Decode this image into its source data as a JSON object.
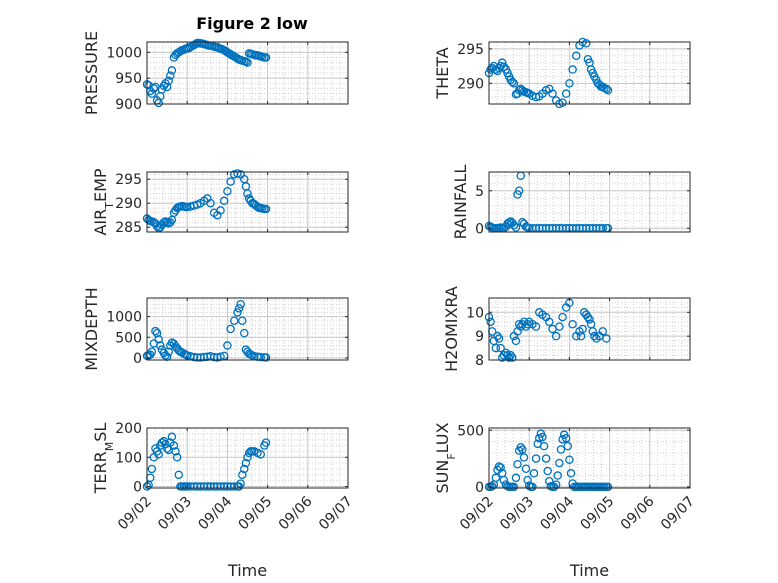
{
  "figure_title": "Figure 2 low",
  "colors": {
    "marker": "#0072BD",
    "axis": "#262626",
    "grid": "#d0d0d0"
  },
  "chart_data": [
    {
      "type": "scatter",
      "ylabel": "PRESSURE",
      "ylabel_parts": [
        {
          "t": "PRESSURE"
        }
      ],
      "xlabel": "",
      "ylim": [
        900,
        1020
      ],
      "yticks": [
        900,
        950,
        1000
      ],
      "xticks": [
        "09/02",
        "09/03",
        "09/04",
        "09/05",
        "09/06",
        "09/07"
      ],
      "show_xtick_labels": false,
      "x": [
        1.0,
        1.04,
        1.08,
        1.12,
        1.17,
        1.21,
        1.25,
        1.29,
        1.33,
        1.37,
        1.42,
        1.46,
        1.5,
        1.54,
        1.58,
        1.62,
        1.67,
        1.71,
        1.75,
        1.79,
        1.83,
        1.87,
        1.92,
        1.96,
        2.0,
        2.04,
        2.08,
        2.12,
        2.17,
        2.21,
        2.25,
        2.29,
        2.33,
        2.37,
        2.42,
        2.46,
        2.5,
        2.54,
        2.58,
        2.62,
        2.67,
        2.71,
        2.75,
        2.79,
        2.83,
        2.87,
        2.92,
        2.96,
        3.0,
        3.04,
        3.08,
        3.12,
        3.17,
        3.21,
        3.25,
        3.29,
        3.33,
        3.37,
        3.42,
        3.46,
        3.5,
        3.54,
        3.58,
        3.62,
        3.67,
        3.71,
        3.75,
        3.79,
        3.83,
        3.87,
        3.92,
        3.96
      ],
      "y": [
        938,
        936,
        925,
        920,
        930,
        933,
        907,
        902,
        915,
        928,
        935,
        940,
        933,
        945,
        955,
        965,
        990,
        995,
        998,
        1000,
        1002,
        1004,
        1005,
        1007,
        1008,
        1008,
        1010,
        1012,
        1014,
        1016,
        1018,
        1018,
        1017,
        1017,
        1016,
        1015,
        1014,
        1013,
        1013,
        1012,
        1011,
        1010,
        1010,
        1008,
        1007,
        1006,
        1004,
        1002,
        1000,
        998,
        996,
        994,
        992,
        990,
        988,
        986,
        985,
        984,
        983,
        982,
        980,
        998,
        997,
        996,
        995,
        994,
        994,
        993,
        992,
        991,
        990,
        990
      ]
    },
    {
      "type": "scatter",
      "ylabel": "THETA",
      "ylabel_parts": [
        {
          "t": "THETA"
        }
      ],
      "xlabel": "",
      "ylim": [
        287,
        296
      ],
      "yticks": [
        290,
        295
      ],
      "xticks": [
        "09/02",
        "09/03",
        "09/04",
        "09/05",
        "09/06",
        "09/07"
      ],
      "show_xtick_labels": false,
      "x": [
        1.0,
        1.04,
        1.08,
        1.12,
        1.17,
        1.21,
        1.25,
        1.29,
        1.33,
        1.37,
        1.42,
        1.46,
        1.5,
        1.54,
        1.58,
        1.62,
        1.67,
        1.71,
        1.75,
        1.79,
        1.83,
        1.87,
        1.92,
        1.96,
        2.0,
        2.08,
        2.17,
        2.25,
        2.33,
        2.42,
        2.5,
        2.58,
        2.67,
        2.75,
        2.83,
        2.92,
        3.0,
        3.08,
        3.17,
        3.25,
        3.33,
        3.42,
        3.46,
        3.5,
        3.54,
        3.58,
        3.62,
        3.67,
        3.71,
        3.75,
        3.79,
        3.83,
        3.87,
        3.92,
        3.96
      ],
      "y": [
        291.5,
        292.0,
        292.2,
        292.5,
        292.0,
        291.8,
        292.2,
        292.5,
        293.0,
        292.4,
        292.0,
        291.5,
        291.0,
        290.5,
        290.2,
        290.0,
        288.4,
        288.5,
        289.0,
        289.2,
        289.0,
        288.8,
        288.7,
        288.6,
        288.5,
        288.2,
        288.0,
        288.1,
        288.5,
        289.0,
        289.2,
        288.5,
        287.5,
        287.0,
        287.2,
        288.5,
        290.0,
        292.0,
        294.0,
        295.5,
        296.0,
        295.8,
        293.5,
        293.0,
        292.0,
        291.5,
        291.0,
        290.5,
        290.0,
        289.8,
        289.5,
        289.5,
        289.3,
        289.2,
        289.0
      ]
    },
    {
      "type": "scatter",
      "ylabel": "AIR_TEMP",
      "ylabel_parts": [
        {
          "t": "AIR"
        },
        {
          "t": "T",
          "sub": true
        },
        {
          "t": "EMP"
        }
      ],
      "xlabel": "",
      "ylim": [
        284,
        296.5
      ],
      "yticks": [
        285,
        290,
        295
      ],
      "xticks": [
        "09/02",
        "09/03",
        "09/04",
        "09/05",
        "09/06",
        "09/07"
      ],
      "show_xtick_labels": false,
      "x": [
        1.0,
        1.04,
        1.08,
        1.12,
        1.17,
        1.21,
        1.25,
        1.29,
        1.33,
        1.37,
        1.42,
        1.46,
        1.5,
        1.54,
        1.58,
        1.62,
        1.67,
        1.71,
        1.75,
        1.79,
        1.83,
        1.87,
        1.92,
        1.96,
        2.0,
        2.08,
        2.17,
        2.25,
        2.33,
        2.42,
        2.5,
        2.58,
        2.67,
        2.75,
        2.83,
        2.92,
        3.0,
        3.08,
        3.17,
        3.25,
        3.33,
        3.42,
        3.46,
        3.5,
        3.54,
        3.58,
        3.62,
        3.67,
        3.71,
        3.75,
        3.79,
        3.83,
        3.87,
        3.92,
        3.96
      ],
      "y": [
        286.8,
        286.5,
        286.3,
        286.2,
        286.0,
        285.8,
        285.2,
        284.8,
        285.0,
        285.5,
        286.0,
        286.2,
        286.0,
        285.8,
        286.0,
        286.5,
        288.0,
        288.5,
        289.0,
        289.2,
        289.3,
        289.4,
        289.3,
        289.2,
        289.2,
        289.3,
        289.5,
        289.7,
        290.0,
        290.5,
        291.0,
        290.0,
        288.0,
        287.5,
        288.5,
        290.5,
        292.5,
        294.5,
        296.0,
        296.2,
        296.0,
        295.0,
        293.5,
        292.0,
        291.0,
        290.5,
        290.0,
        289.8,
        289.5,
        289.2,
        289.0,
        289.0,
        288.9,
        288.8,
        288.8
      ]
    },
    {
      "type": "scatter",
      "ylabel": "RAINFALL",
      "ylabel_parts": [
        {
          "t": "RAINFALL"
        }
      ],
      "xlabel": "",
      "ylim": [
        -0.5,
        7.5
      ],
      "yticks": [
        0,
        5
      ],
      "xticks": [
        "09/02",
        "09/03",
        "09/04",
        "09/05",
        "09/06",
        "09/07"
      ],
      "show_xtick_labels": false,
      "x": [
        1.0,
        1.04,
        1.08,
        1.12,
        1.17,
        1.21,
        1.25,
        1.29,
        1.33,
        1.37,
        1.42,
        1.46,
        1.5,
        1.54,
        1.58,
        1.62,
        1.67,
        1.71,
        1.75,
        1.79,
        1.83,
        1.87,
        1.92,
        1.96,
        2.0,
        2.08,
        2.17,
        2.25,
        2.33,
        2.42,
        2.5,
        2.58,
        2.67,
        2.75,
        2.83,
        2.92,
        3.0,
        3.08,
        3.17,
        3.25,
        3.33,
        3.42,
        3.5,
        3.58,
        3.67,
        3.75,
        3.83,
        3.92,
        3.96
      ],
      "y": [
        0.3,
        0.2,
        0.1,
        0.0,
        0.0,
        0.0,
        0.0,
        0.1,
        0.0,
        0.0,
        0.2,
        0.6,
        0.8,
        0.9,
        0.7,
        0.4,
        0.1,
        4.5,
        5.0,
        7.0,
        0.8,
        0.6,
        0.2,
        0.1,
        0.0,
        0.0,
        0.0,
        0.0,
        0.0,
        0.0,
        0.0,
        0.0,
        0.0,
        0.0,
        0.0,
        0.0,
        0.0,
        0.0,
        0.0,
        0.0,
        0.0,
        0.0,
        0.0,
        0.0,
        0.0,
        0.0,
        0.0,
        0.0,
        0.0
      ]
    },
    {
      "type": "scatter",
      "ylabel": "MIXDEPTH",
      "ylabel_parts": [
        {
          "t": "MIXDEPTH"
        }
      ],
      "xlabel": "",
      "ylim": [
        -50,
        1450
      ],
      "yticks": [
        0,
        500,
        1000
      ],
      "xticks": [
        "09/02",
        "09/03",
        "09/04",
        "09/05",
        "09/06",
        "09/07"
      ],
      "show_xtick_labels": false,
      "x": [
        1.0,
        1.04,
        1.08,
        1.12,
        1.17,
        1.21,
        1.25,
        1.29,
        1.33,
        1.37,
        1.42,
        1.46,
        1.5,
        1.54,
        1.58,
        1.62,
        1.67,
        1.71,
        1.75,
        1.79,
        1.83,
        1.87,
        1.92,
        1.96,
        2.0,
        2.08,
        2.17,
        2.25,
        2.33,
        2.42,
        2.5,
        2.58,
        2.67,
        2.75,
        2.83,
        2.92,
        3.0,
        3.08,
        3.17,
        3.25,
        3.29,
        3.33,
        3.37,
        3.42,
        3.46,
        3.5,
        3.54,
        3.58,
        3.62,
        3.67,
        3.75,
        3.83,
        3.92,
        3.96
      ],
      "y": [
        50,
        60,
        80,
        150,
        350,
        650,
        600,
        450,
        300,
        200,
        120,
        60,
        30,
        150,
        300,
        370,
        340,
        280,
        230,
        180,
        150,
        130,
        100,
        80,
        60,
        40,
        20,
        10,
        10,
        20,
        30,
        40,
        20,
        10,
        30,
        50,
        300,
        700,
        900,
        1100,
        1200,
        1300,
        900,
        600,
        200,
        150,
        100,
        80,
        60,
        40,
        30,
        20,
        15,
        10
      ]
    },
    {
      "type": "scatter",
      "ylabel": "H2OMIXRA",
      "ylabel_parts": [
        {
          "t": "H2OMIXRA"
        }
      ],
      "xlabel": "",
      "ylim": [
        8,
        10.6
      ],
      "yticks": [
        8,
        9,
        10
      ],
      "xticks": [
        "09/02",
        "09/03",
        "09/04",
        "09/05",
        "09/06",
        "09/07"
      ],
      "show_xtick_labels": false,
      "x": [
        1.0,
        1.04,
        1.08,
        1.12,
        1.17,
        1.21,
        1.25,
        1.29,
        1.33,
        1.37,
        1.42,
        1.46,
        1.5,
        1.54,
        1.58,
        1.62,
        1.67,
        1.71,
        1.75,
        1.79,
        1.83,
        1.87,
        1.92,
        1.96,
        2.0,
        2.08,
        2.17,
        2.25,
        2.33,
        2.42,
        2.5,
        2.58,
        2.67,
        2.75,
        2.83,
        2.92,
        3.0,
        3.08,
        3.17,
        3.25,
        3.29,
        3.33,
        3.37,
        3.42,
        3.46,
        3.5,
        3.54,
        3.58,
        3.62,
        3.67,
        3.75,
        3.83,
        3.92
      ],
      "y": [
        9.8,
        9.6,
        9.2,
        8.8,
        8.5,
        9.0,
        8.9,
        8.5,
        8.1,
        8.2,
        8.3,
        8.2,
        8.1,
        8.2,
        8.1,
        9.0,
        8.8,
        9.2,
        9.5,
        9.4,
        9.5,
        9.6,
        9.4,
        9.5,
        9.6,
        9.5,
        9.4,
        10.0,
        9.9,
        9.8,
        9.6,
        9.3,
        9.0,
        9.4,
        9.8,
        10.2,
        10.4,
        9.5,
        9.0,
        9.2,
        9.0,
        9.3,
        10.0,
        9.9,
        9.8,
        9.7,
        9.5,
        9.2,
        9.0,
        8.9,
        9.0,
        9.2,
        8.9
      ]
    },
    {
      "type": "scatter",
      "ylabel": "TERR_MSL",
      "ylabel_parts": [
        {
          "t": "TERR"
        },
        {
          "t": "M",
          "sub": true
        },
        {
          "t": "SL"
        }
      ],
      "xlabel": "Time",
      "ylim": [
        -5,
        200
      ],
      "yticks": [
        0,
        100,
        200
      ],
      "xticks": [
        "09/02",
        "09/03",
        "09/04",
        "09/05",
        "09/06",
        "09/07"
      ],
      "show_xtick_labels": true,
      "x": [
        1.0,
        1.04,
        1.08,
        1.12,
        1.17,
        1.21,
        1.25,
        1.29,
        1.33,
        1.37,
        1.42,
        1.46,
        1.5,
        1.54,
        1.58,
        1.62,
        1.67,
        1.71,
        1.75,
        1.79,
        1.83,
        1.87,
        1.92,
        1.96,
        2.0,
        2.08,
        2.17,
        2.25,
        2.33,
        2.42,
        2.5,
        2.58,
        2.67,
        2.75,
        2.83,
        2.92,
        3.0,
        3.08,
        3.17,
        3.25,
        3.29,
        3.33,
        3.37,
        3.42,
        3.46,
        3.5,
        3.54,
        3.58,
        3.62,
        3.67,
        3.75,
        3.83,
        3.92,
        3.96
      ],
      "y": [
        0,
        5,
        30,
        60,
        100,
        130,
        120,
        110,
        140,
        150,
        155,
        145,
        130,
        125,
        150,
        170,
        140,
        120,
        100,
        40,
        0,
        0,
        0,
        0,
        0,
        0,
        0,
        0,
        0,
        0,
        0,
        0,
        0,
        0,
        0,
        0,
        0,
        0,
        0,
        0,
        0,
        10,
        40,
        60,
        80,
        100,
        115,
        120,
        120,
        120,
        115,
        110,
        140,
        150
      ]
    },
    {
      "type": "scatter",
      "ylabel": "SUN_FLUX",
      "ylabel_parts": [
        {
          "t": "SUN"
        },
        {
          "t": "F",
          "sub": true
        },
        {
          "t": "LUX"
        }
      ],
      "xlabel": "Time",
      "ylim": [
        -10,
        520
      ],
      "yticks": [
        0,
        500
      ],
      "xticks": [
        "09/02",
        "09/03",
        "09/04",
        "09/05",
        "09/06",
        "09/07"
      ],
      "show_xtick_labels": true,
      "x": [
        1.0,
        1.04,
        1.08,
        1.12,
        1.17,
        1.21,
        1.25,
        1.29,
        1.33,
        1.37,
        1.42,
        1.46,
        1.5,
        1.54,
        1.58,
        1.62,
        1.67,
        1.71,
        1.75,
        1.79,
        1.83,
        1.87,
        1.92,
        1.96,
        2.0,
        2.04,
        2.08,
        2.12,
        2.17,
        2.21,
        2.25,
        2.29,
        2.33,
        2.37,
        2.42,
        2.46,
        2.5,
        2.54,
        2.58,
        2.62,
        2.67,
        2.71,
        2.75,
        2.79,
        2.83,
        2.87,
        2.92,
        2.96,
        3.0,
        3.04,
        3.08,
        3.12,
        3.17,
        3.21,
        3.25,
        3.29,
        3.33,
        3.37,
        3.42,
        3.46,
        3.5,
        3.54,
        3.58,
        3.62,
        3.67,
        3.71,
        3.75,
        3.79,
        3.83,
        3.87,
        3.92,
        3.96
      ],
      "y": [
        0,
        0,
        5,
        20,
        80,
        150,
        180,
        170,
        120,
        60,
        20,
        5,
        0,
        0,
        0,
        0,
        80,
        200,
        320,
        350,
        330,
        260,
        160,
        60,
        10,
        0,
        0,
        120,
        250,
        380,
        430,
        470,
        440,
        360,
        250,
        140,
        50,
        5,
        0,
        0,
        20,
        100,
        210,
        330,
        420,
        460,
        430,
        360,
        240,
        120,
        30,
        0,
        0,
        0,
        0,
        0,
        0,
        0,
        0,
        0,
        0,
        0,
        0,
        0,
        0,
        0,
        0,
        0,
        0,
        0,
        0,
        0
      ]
    }
  ]
}
